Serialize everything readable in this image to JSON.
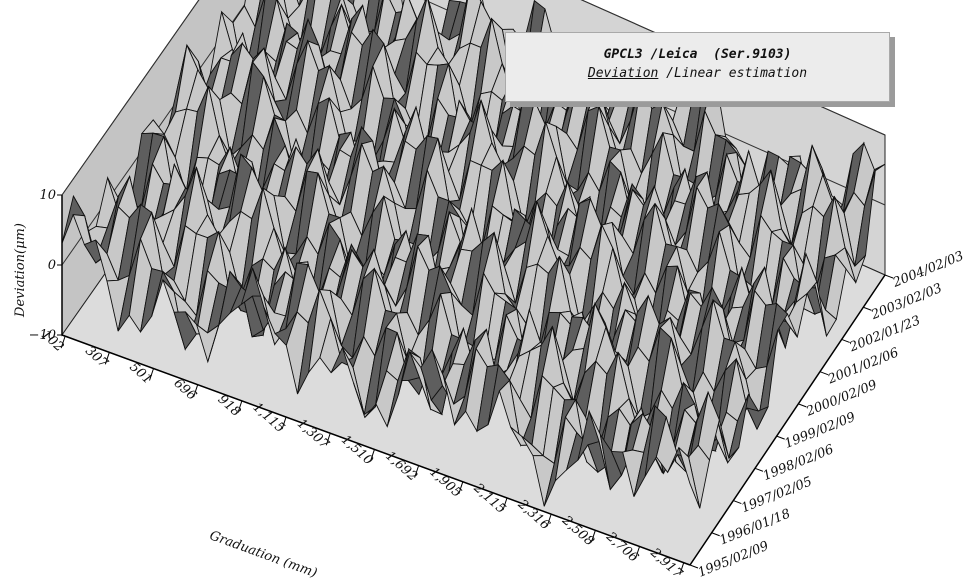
{
  "chart_data": {
    "type": "surface",
    "title": "GPCL3 /Leica  (Ser.9103)",
    "subtitle_underlined": "Deviation",
    "subtitle_rest": " /Linear estimation",
    "xlabel": "Graduation (mm)",
    "ylabel": "Deviation(μm)",
    "zlim": [
      -10,
      10
    ],
    "z_ticks": [
      "10",
      "0",
      "−10"
    ],
    "x_ticks": [
      "102",
      "307",
      "501",
      "696",
      "918",
      "1,115",
      "1,307",
      "1,510",
      "1,692",
      "1,905",
      "2,115",
      "2,316",
      "2,508",
      "2,706",
      "2,917"
    ],
    "y_ticks": [
      "1995/02/09",
      "1996/01/18",
      "1997/02/05",
      "1998/02/06",
      "1999/02/09",
      "2000/02/09",
      "2001/02/06",
      "2002/01/23",
      "2003/02/03",
      "2004/02/03"
    ],
    "grid": {
      "cols": 56,
      "rows": 20
    },
    "colors": {
      "face_light": "#c8c8c8",
      "face_dark": "#5e5e5e",
      "edge": "#111111",
      "wall": "#cfcfcf",
      "floor": "#dcdcdc"
    }
  }
}
